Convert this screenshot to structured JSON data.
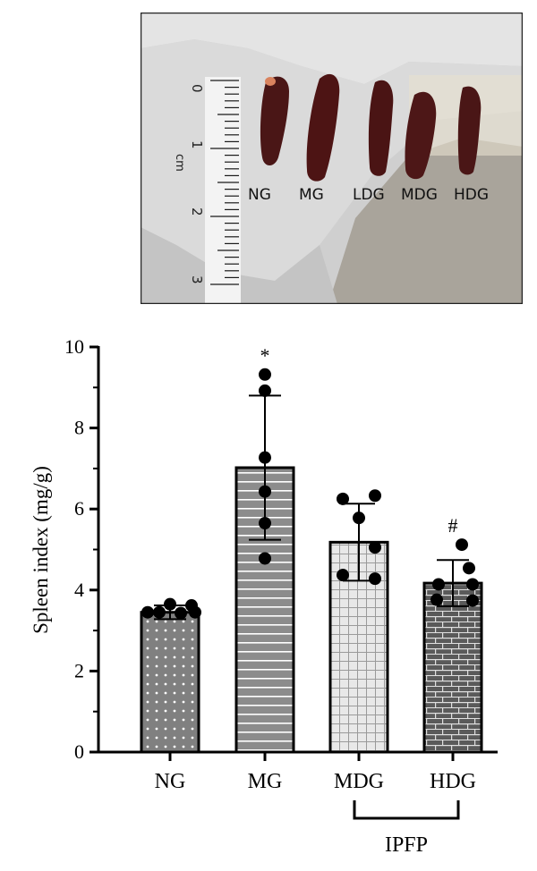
{
  "photo": {
    "ruler_marks": [
      "0",
      "1",
      "2",
      "3"
    ],
    "ruler_unit": "cm",
    "specimen_labels": [
      "NG",
      "MG",
      "LDG",
      "MDG",
      "HDG"
    ]
  },
  "chart_data": {
    "type": "bar",
    "categories": [
      "NG",
      "MG",
      "MDG",
      "HDG"
    ],
    "values": [
      3.45,
      7.02,
      5.18,
      4.17
    ],
    "error": [
      0.17,
      1.78,
      0.95,
      0.57
    ],
    "points": [
      [
        3.45,
        3.45,
        3.65,
        3.43,
        3.62,
        3.45
      ],
      [
        9.32,
        8.92,
        7.27,
        6.43,
        5.65,
        4.78
      ],
      [
        6.25,
        6.33,
        5.78,
        5.05,
        4.37,
        4.28
      ],
      [
        5.12,
        4.54,
        4.14,
        4.14,
        3.76,
        3.74
      ]
    ],
    "annotations": [
      "",
      "*",
      "",
      "#"
    ],
    "patterns": [
      "dots",
      "hlines",
      "grid",
      "bricks"
    ],
    "bar_colors": [
      "#808080",
      "#8c8c8c",
      "#e6e6e6",
      "#5c5c5c"
    ],
    "ylabel": "Spleen index (mg/g)",
    "yticks": [
      "0",
      "2",
      "4",
      "6",
      "8",
      "10"
    ],
    "ylim": [
      0,
      10
    ],
    "group_label": "IPFP",
    "grid": false
  }
}
